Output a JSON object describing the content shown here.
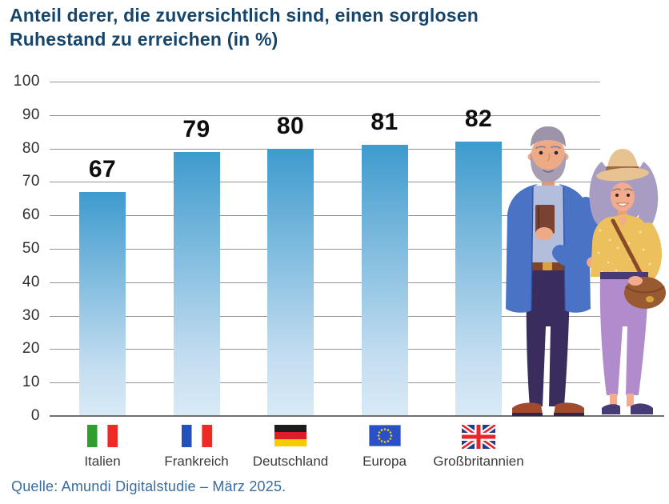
{
  "title": "Anteil derer, die zuversichtlich sind, einen sorglosen Ruhestand zu erreichen (in %)",
  "source": "Quelle: Amundi Digitalstudie – März 2025.",
  "illustration": {
    "name": "retired-couple-illustration"
  },
  "colors": {
    "title": "#16456b",
    "source": "#3a6b9e",
    "bar_top": "#3d9bce",
    "bar_bottom": "#d9eaf6",
    "gridline": "#929292",
    "value_label": "#0d0d0d"
  },
  "chart_data": {
    "type": "bar",
    "title": "Anteil derer, die zuversichtlich sind, einen sorglosen Ruhestand zu erreichen (in %)",
    "categories": [
      "Italien",
      "Frankreich",
      "Deutschland",
      "Europa",
      "Großbritannien"
    ],
    "values": [
      67,
      79,
      80,
      81,
      82
    ],
    "value_labels": [
      "67",
      "79",
      "80",
      "81",
      "82"
    ],
    "flags": [
      "italy-flag-icon",
      "france-flag-icon",
      "germany-flag-icon",
      "eu-flag-icon",
      "uk-flag-icon"
    ],
    "xlabel": "",
    "ylabel": "",
    "ylim": [
      0,
      100
    ],
    "y_ticks": [
      0,
      10,
      20,
      30,
      40,
      50,
      60,
      70,
      80,
      90,
      100
    ],
    "grid": true,
    "legend": false
  }
}
